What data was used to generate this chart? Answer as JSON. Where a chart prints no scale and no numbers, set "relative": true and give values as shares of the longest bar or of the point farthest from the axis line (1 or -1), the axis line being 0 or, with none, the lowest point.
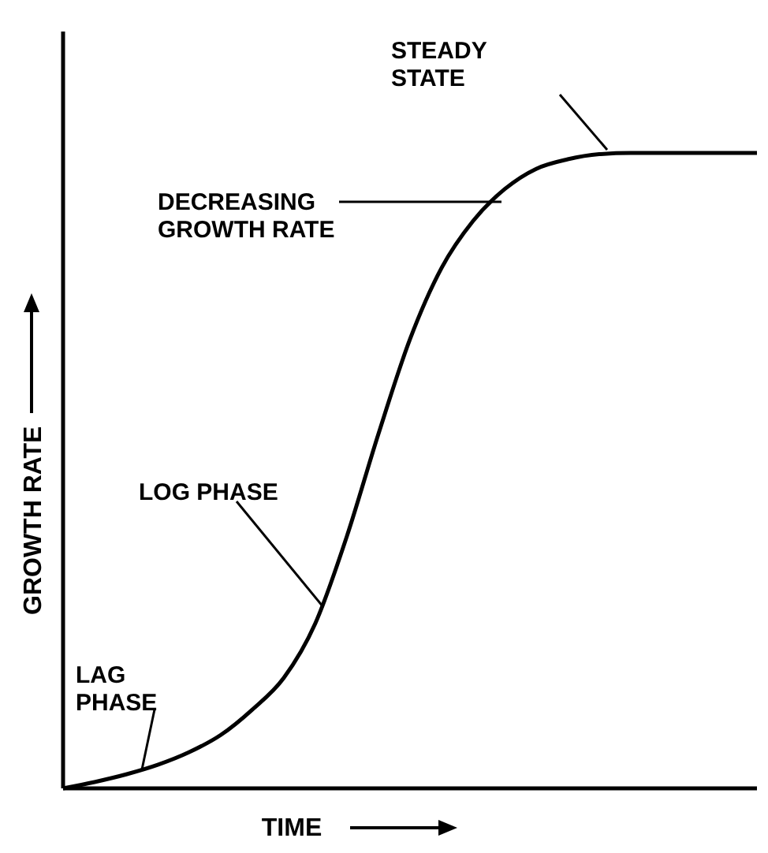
{
  "chart_data": {
    "type": "line",
    "relative": true,
    "xlabel": "TIME",
    "ylabel": "GROWTH RATE",
    "color": "#000000",
    "marker": "none",
    "line_style": "solid",
    "categories": [
      null,
      null,
      null,
      null,
      null,
      null,
      null,
      null,
      null,
      null,
      null,
      null,
      null,
      null,
      null,
      null,
      null,
      null,
      null,
      null,
      null,
      null,
      null
    ],
    "values": [
      0,
      0.01,
      0.022,
      0.037,
      0.057,
      0.084,
      0.124,
      0.174,
      0.26,
      0.397,
      0.558,
      0.707,
      0.819,
      0.893,
      0.943,
      0.975,
      0.99,
      0.998,
      1,
      1,
      1,
      1,
      1
    ],
    "annotations": [
      "STEADY\nSTATE",
      "DECREASING\nGROWTH RATE",
      "LOG PHASE",
      "LAG\nPHASE"
    ]
  }
}
